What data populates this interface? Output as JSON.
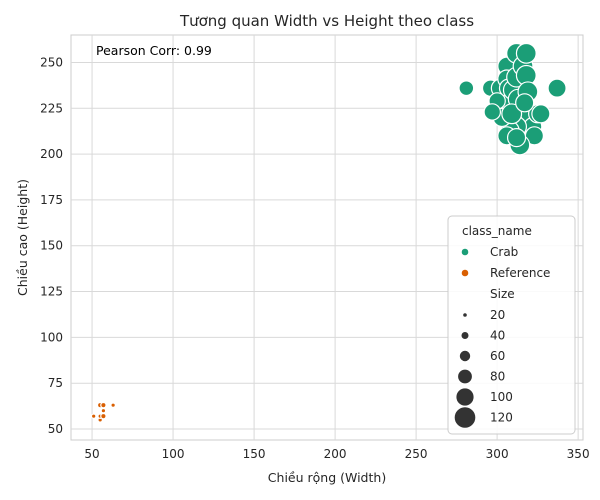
{
  "chart_data": {
    "type": "scatter",
    "title": "Tương quan Width vs Height theo class",
    "xlabel": "Chiều rộng (Width)",
    "ylabel": "Chiều cao (Height)",
    "xlim": [
      37,
      353
    ],
    "ylim": [
      44,
      265
    ],
    "xticks": [
      50,
      100,
      150,
      200,
      250,
      300,
      350
    ],
    "yticks": [
      50,
      75,
      100,
      125,
      150,
      175,
      200,
      225,
      250
    ],
    "grid": true,
    "annotation": "Pearson Corr: 0.99",
    "legend_position": "lower-right",
    "legend_hue_title": "class_name",
    "legend_size_title": "Size",
    "size_legend": [
      20,
      40,
      60,
      80,
      100,
      120
    ],
    "series": [
      {
        "name": "Crab",
        "color": "#1b9e77",
        "points": [
          {
            "x": 281,
            "y": 236,
            "size": 80
          },
          {
            "x": 296,
            "y": 236,
            "size": 90
          },
          {
            "x": 302,
            "y": 236,
            "size": 100
          },
          {
            "x": 306,
            "y": 248,
            "size": 100
          },
          {
            "x": 306,
            "y": 241,
            "size": 100
          },
          {
            "x": 307,
            "y": 236,
            "size": 100
          },
          {
            "x": 308,
            "y": 228,
            "size": 100
          },
          {
            "x": 310,
            "y": 235,
            "size": 110
          },
          {
            "x": 312,
            "y": 242,
            "size": 110
          },
          {
            "x": 312,
            "y": 255,
            "size": 110
          },
          {
            "x": 313,
            "y": 230,
            "size": 110
          },
          {
            "x": 314,
            "y": 222,
            "size": 110
          },
          {
            "x": 316,
            "y": 248,
            "size": 110
          },
          {
            "x": 318,
            "y": 255,
            "size": 110
          },
          {
            "x": 318,
            "y": 243,
            "size": 110
          },
          {
            "x": 319,
            "y": 234,
            "size": 110
          },
          {
            "x": 320,
            "y": 222,
            "size": 100
          },
          {
            "x": 322,
            "y": 215,
            "size": 100
          },
          {
            "x": 323,
            "y": 210,
            "size": 100
          },
          {
            "x": 325,
            "y": 222,
            "size": 100
          },
          {
            "x": 312,
            "y": 215,
            "size": 110
          },
          {
            "x": 314,
            "y": 205,
            "size": 110
          },
          {
            "x": 308,
            "y": 213,
            "size": 100
          },
          {
            "x": 306,
            "y": 210,
            "size": 100
          },
          {
            "x": 303,
            "y": 220,
            "size": 100
          },
          {
            "x": 300,
            "y": 229,
            "size": 90
          },
          {
            "x": 297,
            "y": 223,
            "size": 90
          },
          {
            "x": 309,
            "y": 222,
            "size": 110
          },
          {
            "x": 317,
            "y": 228,
            "size": 100
          },
          {
            "x": 312,
            "y": 209,
            "size": 100
          },
          {
            "x": 327,
            "y": 222,
            "size": 100
          },
          {
            "x": 337,
            "y": 236,
            "size": 100
          }
        ]
      },
      {
        "name": "Reference",
        "color": "#d95f02",
        "points": [
          {
            "x": 51,
            "y": 57,
            "size": 20
          },
          {
            "x": 55,
            "y": 55,
            "size": 20
          },
          {
            "x": 55,
            "y": 57,
            "size": 20
          },
          {
            "x": 55,
            "y": 63,
            "size": 25
          },
          {
            "x": 57,
            "y": 57,
            "size": 25
          },
          {
            "x": 57,
            "y": 60,
            "size": 20
          },
          {
            "x": 57,
            "y": 63,
            "size": 25
          },
          {
            "x": 63,
            "y": 63,
            "size": 20
          }
        ]
      }
    ]
  }
}
